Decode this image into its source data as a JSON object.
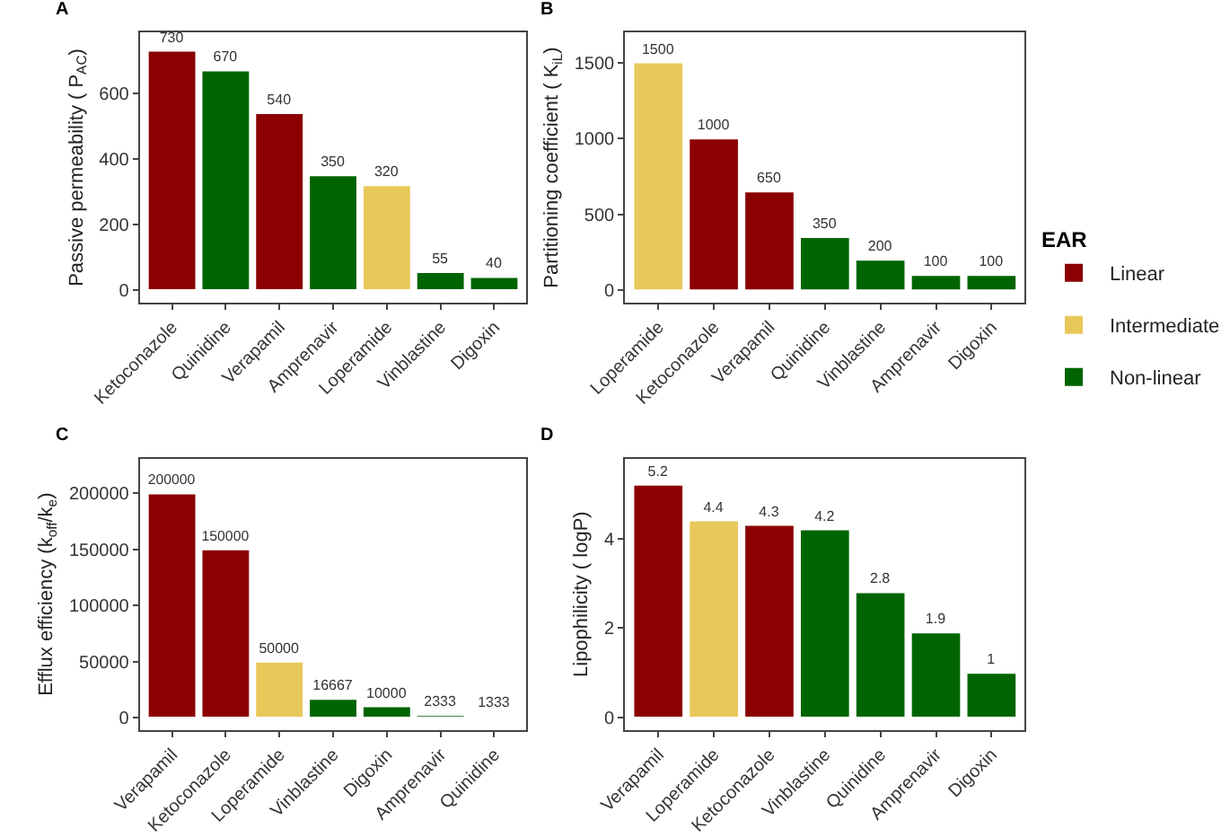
{
  "chart_data": [
    {
      "type": "bar",
      "title": "A",
      "ylabel": "Passive permeability ( P$_{AC}$)",
      "categories": [
        "Ketoconazole",
        "Quinidine",
        "Verapamil",
        "Amprenavir",
        "Loperamide",
        "Vinblastine",
        "Digoxin"
      ],
      "stacked": true,
      "data_labels": true,
      "ylim": [
        -37,
        785
      ],
      "yticks": [
        0,
        200,
        400,
        600
      ],
      "legend": "right",
      "legend_title": "EAR",
      "series": [
        {
          "name": "Linear",
          "color": "#8b0000",
          "values": [
            730,
            null,
            540,
            null,
            null,
            null,
            null
          ]
        },
        {
          "name": "Intermediate",
          "color": "#e8c85a",
          "values": [
            null,
            null,
            null,
            null,
            320,
            null,
            null
          ]
        },
        {
          "name": "Non-linear",
          "color": "#006400",
          "values": [
            null,
            670,
            null,
            350,
            null,
            55,
            40
          ]
        }
      ]
    },
    {
      "type": "bar",
      "title": "B",
      "ylabel": "Partitioning coefficient ( K$_{iL}$)",
      "categories": [
        "Loperamide",
        "Ketoconazole",
        "Verapamil",
        "Quinidine",
        "Vinblastine",
        "Amprenavir",
        "Digoxin"
      ],
      "stacked": true,
      "data_labels": true,
      "ylim": [
        -79,
        1696
      ],
      "yticks": [
        0,
        500,
        1000,
        1500
      ],
      "series": [
        {
          "color": "#8b0000",
          "values": [
            null,
            1000,
            650,
            null,
            null,
            null,
            null
          ]
        },
        {
          "color": "#e8c85a",
          "values": [
            1500,
            null,
            null,
            null,
            null,
            null,
            null
          ]
        },
        {
          "color": "#006400",
          "values": [
            null,
            null,
            null,
            350,
            200,
            100,
            100
          ]
        }
      ]
    },
    {
      "type": "bar",
      "title": "C",
      "ylabel": "Efflux efficiency (k$_{off}$/k$_{e}$)",
      "categories": [
        "Verapamil",
        "Ketoconazole",
        "Loperamide",
        "Vinblastine",
        "Digoxin",
        "Amprenavir",
        "Quinidine"
      ],
      "stacked": true,
      "data_labels": true,
      "ylim": [
        -10800,
        231000
      ],
      "yticks": [
        0,
        50000,
        100000,
        150000,
        200000
      ],
      "series": [
        {
          "color": "#8b0000",
          "values": [
            200000,
            150000,
            null,
            null,
            null,
            null,
            null
          ]
        },
        {
          "color": "#e8c85a",
          "values": [
            null,
            null,
            50000,
            null,
            null,
            null,
            null
          ]
        },
        {
          "color": "#006400",
          "values": [
            null,
            null,
            null,
            16667,
            10000,
            2333,
            1333
          ]
        }
      ]
    },
    {
      "type": "bar",
      "title": "D",
      "ylabel": "Lipophilicity ( logP)",
      "categories": [
        "Verapamil",
        "Loperamide",
        "Ketoconazole",
        "Vinblastine",
        "Quinidine",
        "Amprenavir",
        "Digoxin"
      ],
      "stacked": true,
      "data_labels": true,
      "ylim": [
        -0.27,
        5.78
      ],
      "yticks": [
        0,
        2,
        4
      ],
      "series": [
        {
          "color": "#8b0000",
          "values": [
            5.2,
            null,
            4.3,
            null,
            null,
            null,
            null
          ]
        },
        {
          "color": "#e8c85a",
          "values": [
            null,
            4.4,
            null,
            null,
            null,
            null,
            null
          ]
        },
        {
          "color": "#006400",
          "values": [
            null,
            null,
            null,
            4.2,
            2.8,
            1.9,
            1
          ]
        }
      ]
    }
  ]
}
